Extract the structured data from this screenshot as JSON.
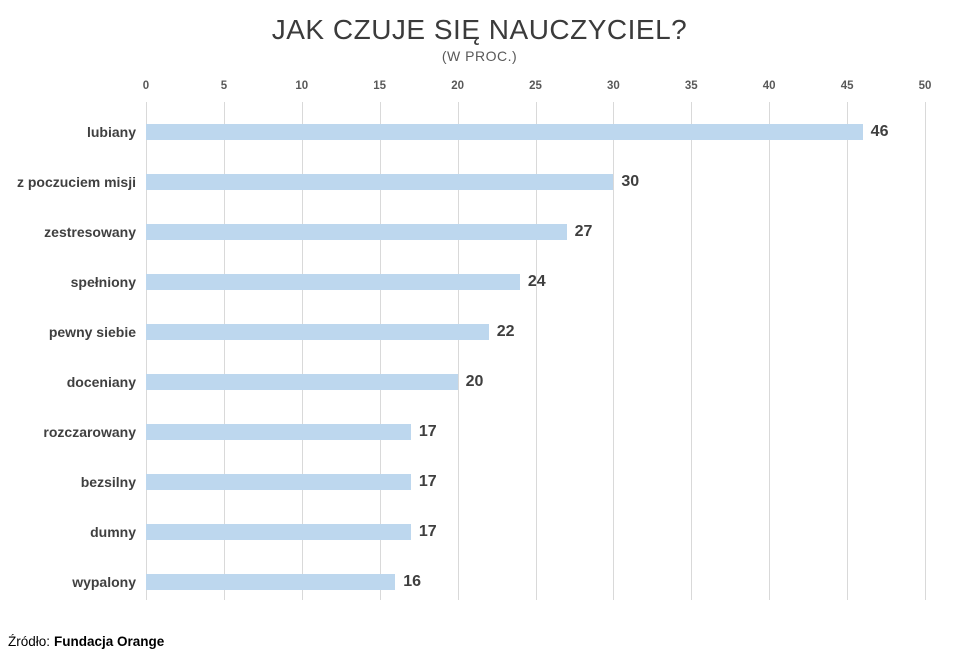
{
  "title": "JAK CZUJE SIĘ NAUCZYCIEL?",
  "subtitle": "(W PROC.)",
  "source": {
    "prefix": "Źródło:",
    "name": "Fundacja Orange"
  },
  "chart_data": {
    "type": "bar",
    "orientation": "horizontal",
    "title": "JAK CZUJE SIĘ NAUCZYCIEL?",
    "subtitle": "(W PROC.)",
    "xlabel": "",
    "ylabel": "",
    "categories": [
      "lubiany",
      "z poczuciem misji",
      "zestresowany",
      "spełniony",
      "pewny siebie",
      "doceniany",
      "rozczarowany",
      "bezsilny",
      "dumny",
      "wypalony"
    ],
    "values": [
      46,
      30,
      27,
      24,
      22,
      20,
      17,
      17,
      17,
      16
    ],
    "xlim": [
      0,
      50
    ],
    "xticks": [
      0,
      5,
      10,
      15,
      20,
      25,
      30,
      35,
      40,
      45,
      50
    ],
    "grid": true,
    "legend": "none",
    "bar_color": "#bdd7ee",
    "gridline_color": "#d9d9d9",
    "tick_label_color": "#595959",
    "category_label_color": "#404040",
    "value_label_color": "#3f3f3f"
  }
}
